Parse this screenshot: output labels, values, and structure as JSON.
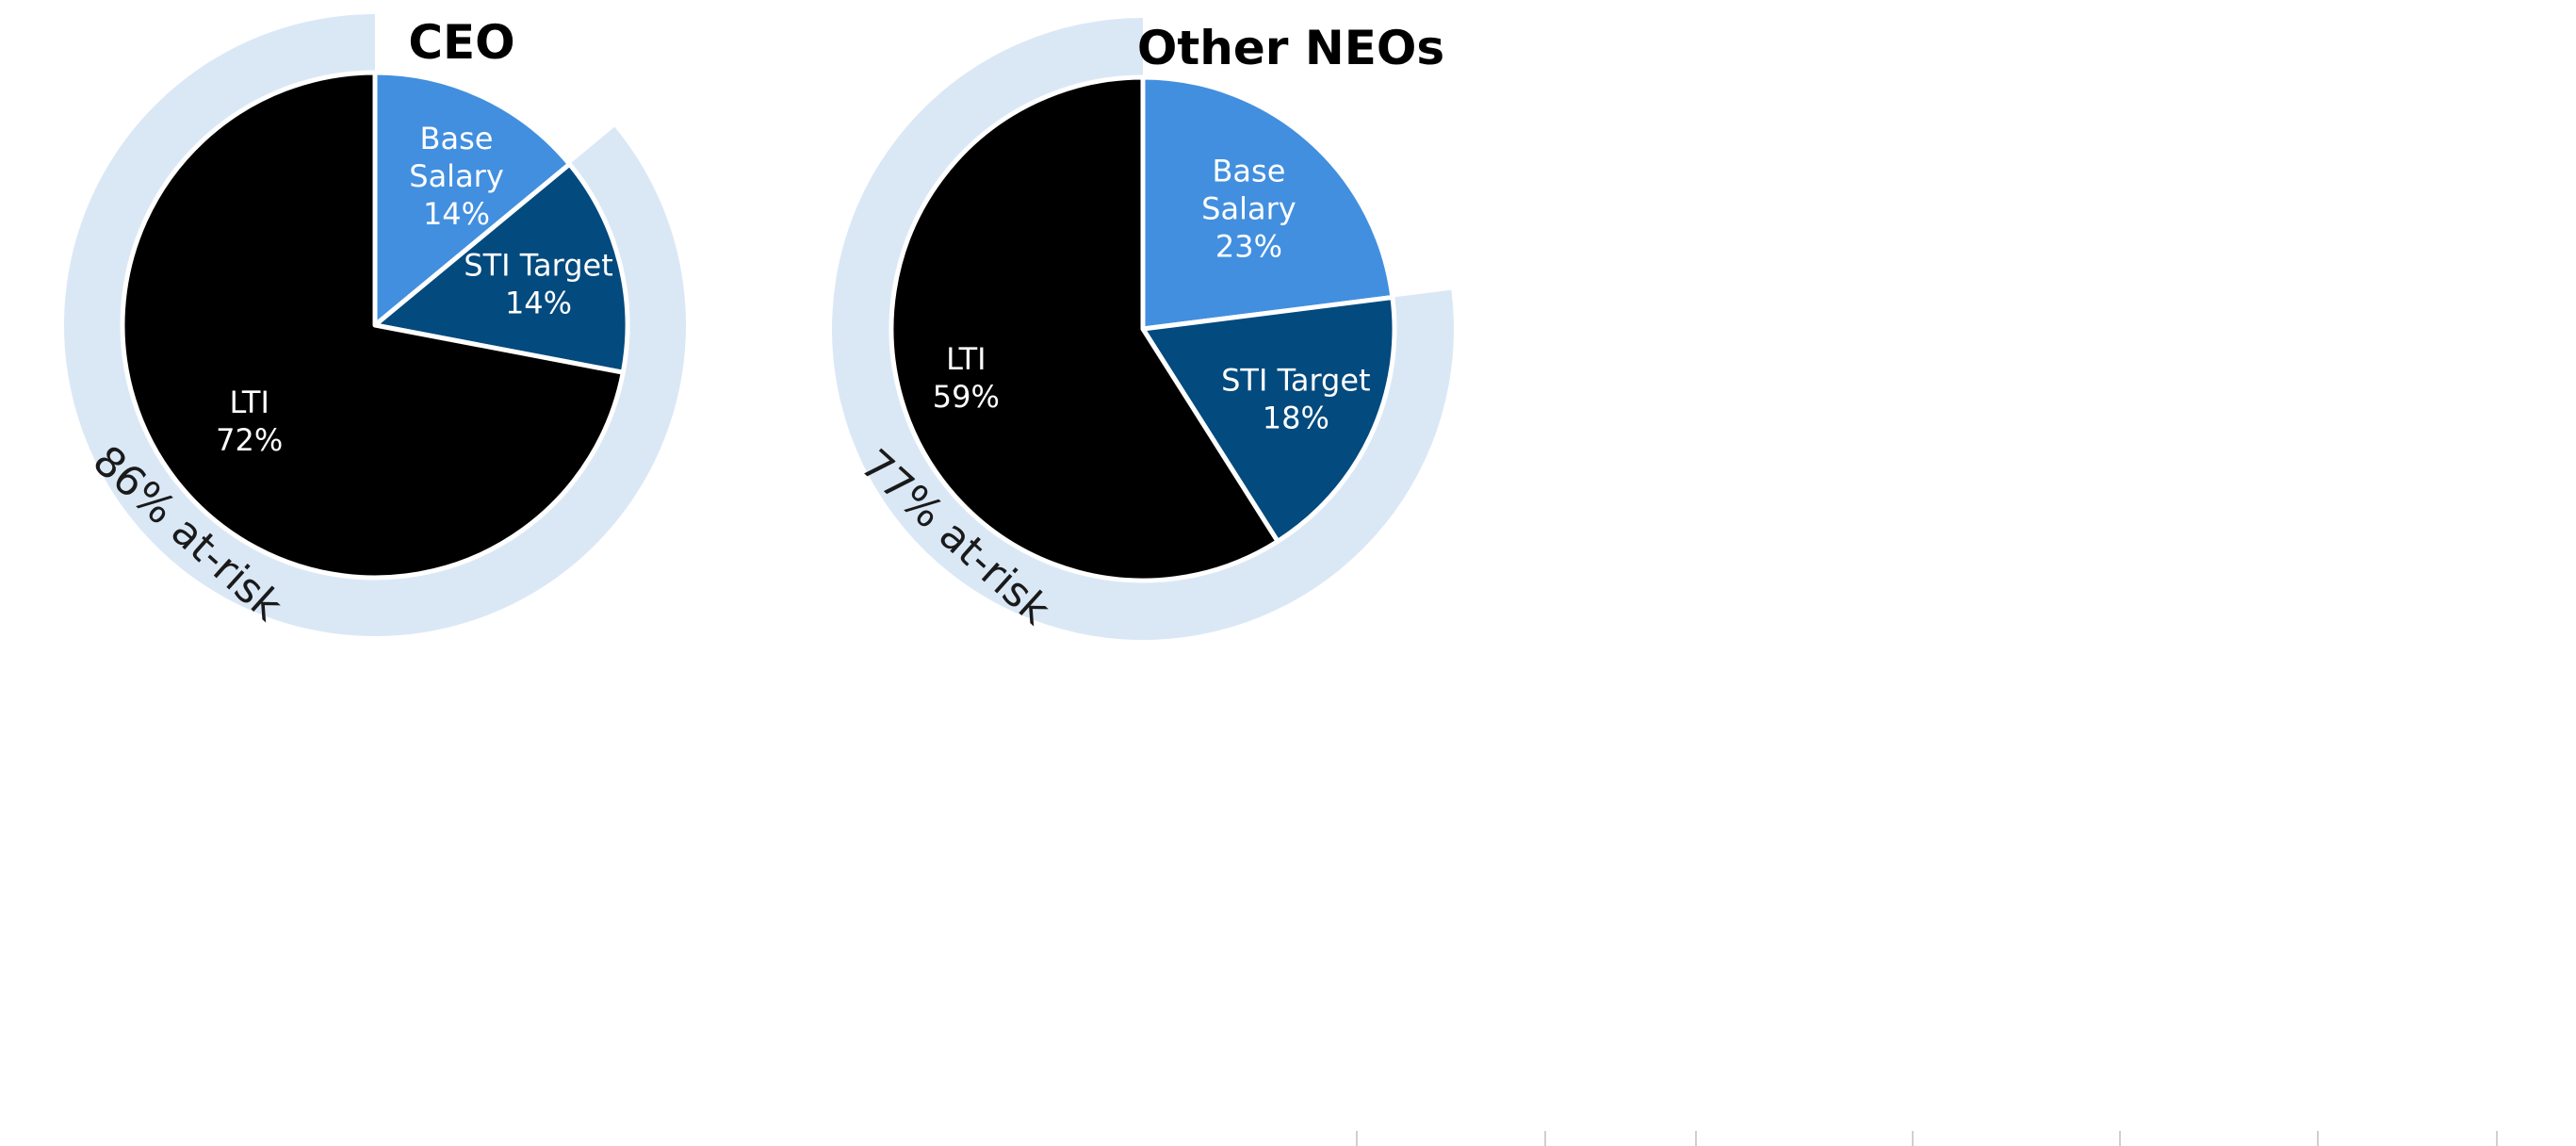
{
  "chart_data": [
    {
      "type": "pie",
      "title": "CEO",
      "slices": [
        {
          "label_lines": [
            "Base",
            "Salary"
          ],
          "value": 14,
          "display": "14%",
          "color": "#428fdf"
        },
        {
          "label_lines": [
            "STI Target"
          ],
          "value": 14,
          "display": "14%",
          "color": "#034a7e"
        },
        {
          "label_lines": [
            "LTI"
          ],
          "value": 72,
          "display": "72%",
          "color": "#000000"
        }
      ],
      "at_risk": {
        "value": 86,
        "label": "86% at-risk",
        "color": "#dae8f6"
      }
    },
    {
      "type": "pie",
      "title": "Other NEOs",
      "slices": [
        {
          "label_lines": [
            "Base",
            "Salary"
          ],
          "value": 23,
          "display": "23%",
          "color": "#428fdf"
        },
        {
          "label_lines": [
            "STI Target"
          ],
          "value": 18,
          "display": "18%",
          "color": "#034a7e"
        },
        {
          "label_lines": [
            "LTI"
          ],
          "value": 59,
          "display": "59%",
          "color": "#000000"
        }
      ],
      "at_risk": {
        "value": 77,
        "label": "77% at-risk",
        "color": "#dae8f6"
      }
    }
  ]
}
